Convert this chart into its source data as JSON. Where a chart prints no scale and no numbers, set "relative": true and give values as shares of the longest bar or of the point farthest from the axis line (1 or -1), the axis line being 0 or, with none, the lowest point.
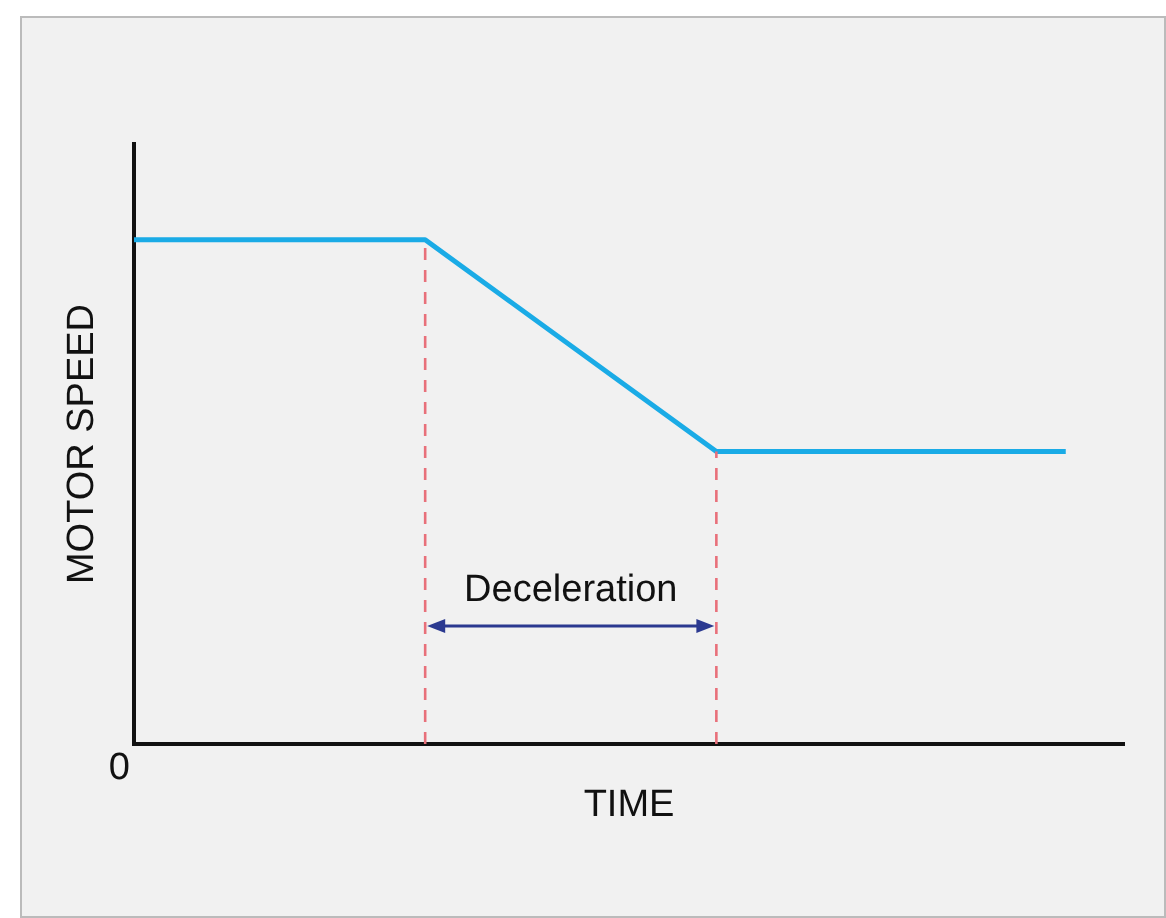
{
  "chart_data": {
    "type": "line",
    "relative": true,
    "xlabel": "TIME",
    "ylabel": "MOTOR SPEED",
    "categories": [
      null,
      null,
      null,
      null,
      null,
      null,
      null,
      null,
      null,
      null,
      null,
      null,
      null,
      null,
      null,
      null,
      null,
      null
    ],
    "series": [
      {
        "color": "#1aabe6",
        "values": [
          1,
          null,
          null,
          null,
          null,
          1,
          null,
          null,
          null,
          null,
          0.58,
          null,
          null,
          null,
          null,
          null,
          0.58,
          null
        ]
      }
    ],
    "annotations": [
      "Deceleration",
      "0"
    ],
    "grid": false,
    "legend": false,
    "marker": "none",
    "line_style": "solid"
  }
}
